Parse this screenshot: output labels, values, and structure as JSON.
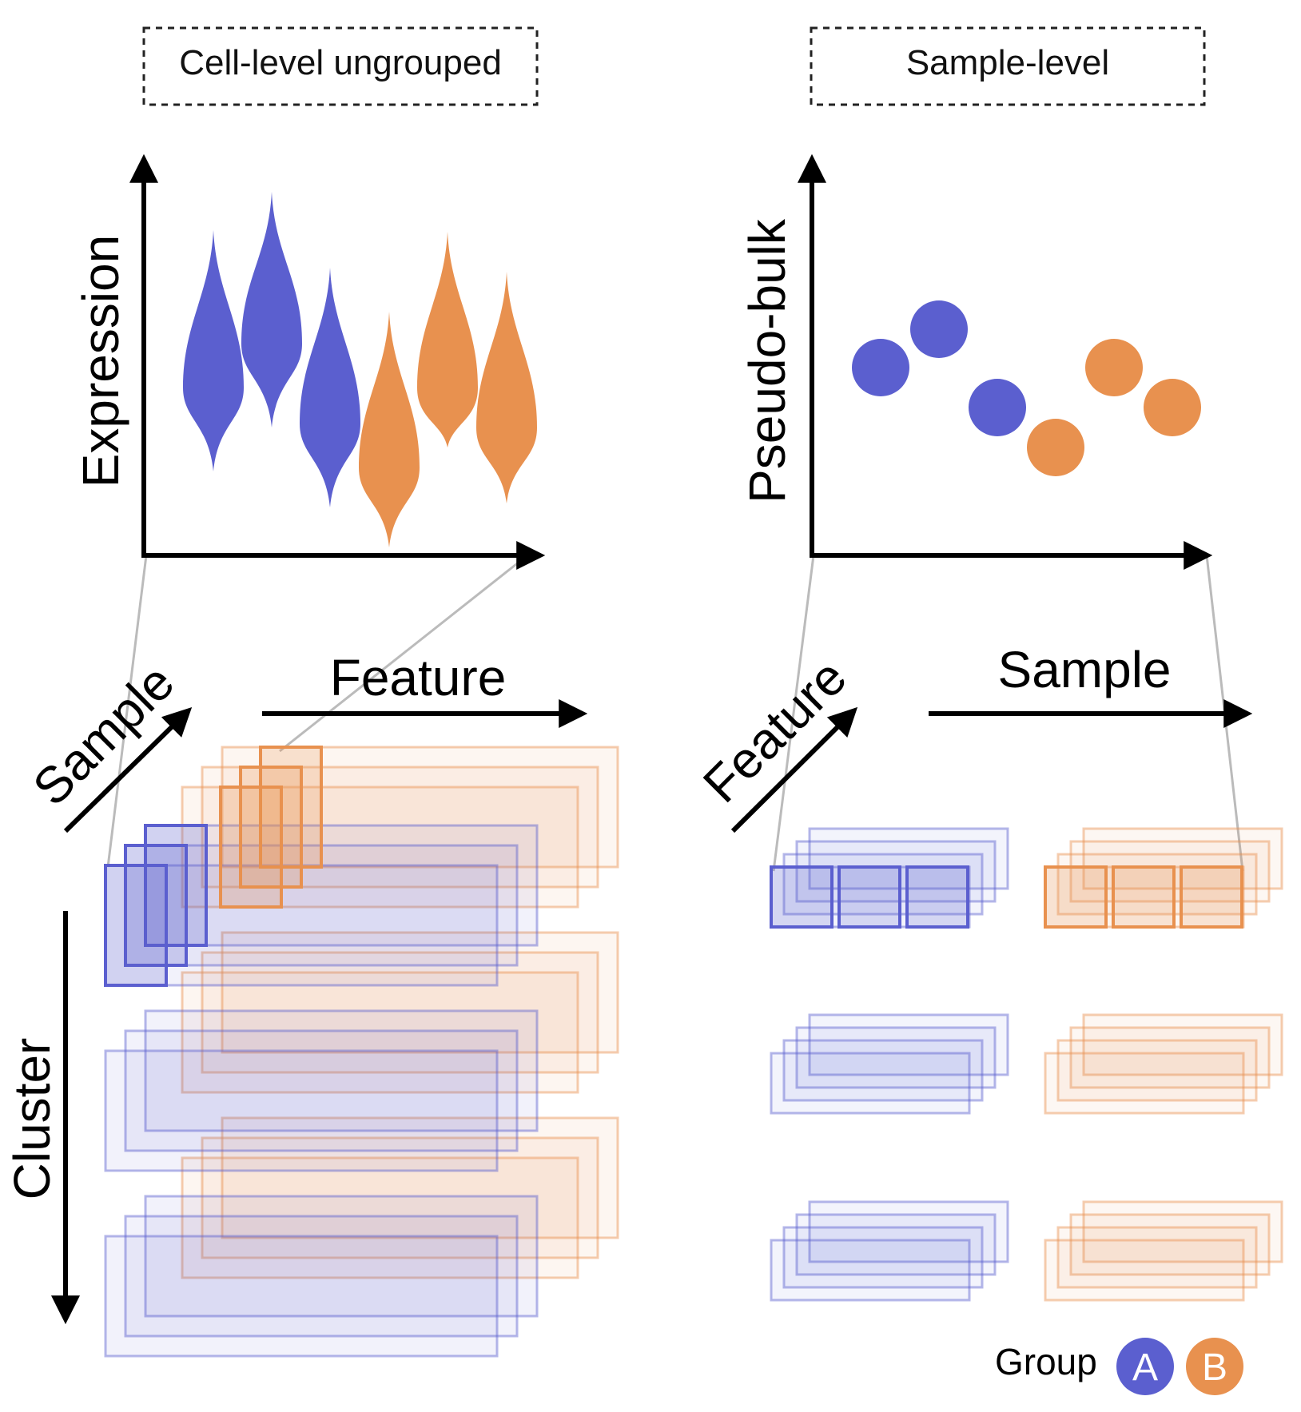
{
  "left_panel": {
    "title": "Cell-level ungrouped",
    "y_axis_label": "Expression",
    "cube_labels": {
      "diagonal": "Sample",
      "horizontal": "Feature",
      "vertical": "Cluster"
    }
  },
  "right_panel": {
    "title": "Sample-level",
    "y_axis_label": "Pseudo-bulk",
    "cube_labels": {
      "diagonal": "Feature",
      "horizontal": "Sample"
    }
  },
  "legend": {
    "title": "Group",
    "items": [
      {
        "label": "A",
        "color": "#5b5fcf"
      },
      {
        "label": "B",
        "color": "#e8914f"
      }
    ]
  },
  "colors": {
    "group_a": "#5b5fcf",
    "group_b": "#e8914f",
    "axis": "#000000",
    "connector": "#bbbbbb"
  },
  "violins": [
    {
      "group": "A"
    },
    {
      "group": "A"
    },
    {
      "group": "A"
    },
    {
      "group": "B"
    },
    {
      "group": "B"
    },
    {
      "group": "B"
    }
  ],
  "dots": [
    {
      "group": "A"
    },
    {
      "group": "A"
    },
    {
      "group": "A"
    },
    {
      "group": "B"
    },
    {
      "group": "B"
    },
    {
      "group": "B"
    }
  ]
}
